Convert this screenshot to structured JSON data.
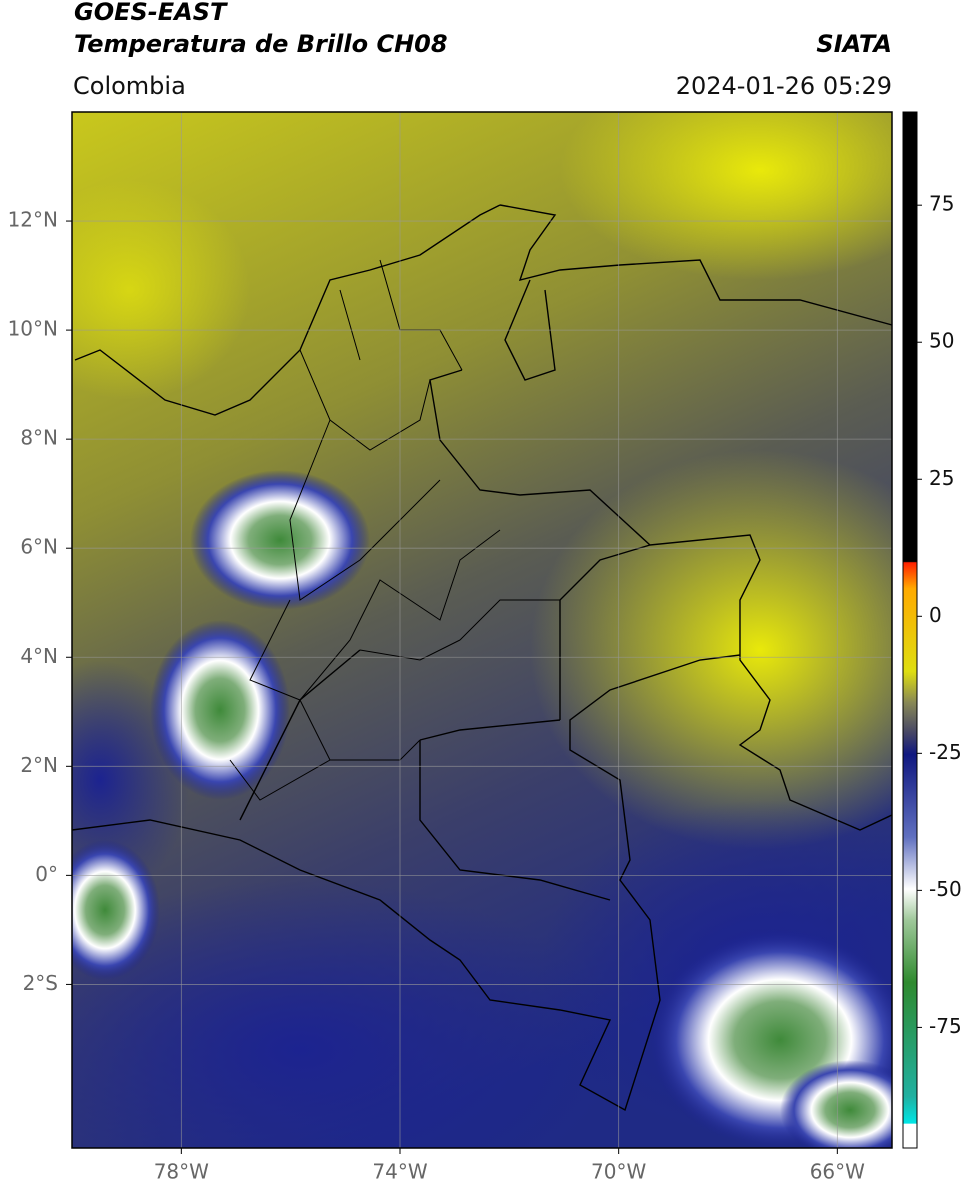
{
  "header": {
    "satellite": "GOES-EAST",
    "product": "Temperatura de Brillo CH08",
    "source": "SIATA",
    "region": "Colombia",
    "datetime": "2024-01-26 05:29"
  },
  "map": {
    "xlim": [
      -80,
      -65
    ],
    "ylim": [
      -5,
      14
    ],
    "lon_ticks": [
      {
        "value": -78,
        "label": "78°W"
      },
      {
        "value": -74,
        "label": "74°W"
      },
      {
        "value": -70,
        "label": "70°W"
      },
      {
        "value": -66,
        "label": "66°W"
      }
    ],
    "lat_ticks": [
      {
        "value": 12,
        "label": "12°N"
      },
      {
        "value": 10,
        "label": "10°N"
      },
      {
        "value": 8,
        "label": "8°N"
      },
      {
        "value": 6,
        "label": "6°N"
      },
      {
        "value": 4,
        "label": "4°N"
      },
      {
        "value": 2,
        "label": "2°N"
      },
      {
        "value": 0,
        "label": "0°"
      },
      {
        "value": -2,
        "label": "2°S"
      }
    ]
  },
  "colorbar": {
    "lim": [
      -97,
      92
    ],
    "ticks": [
      75,
      50,
      25,
      0,
      -25,
      -50,
      -75
    ]
  }
}
